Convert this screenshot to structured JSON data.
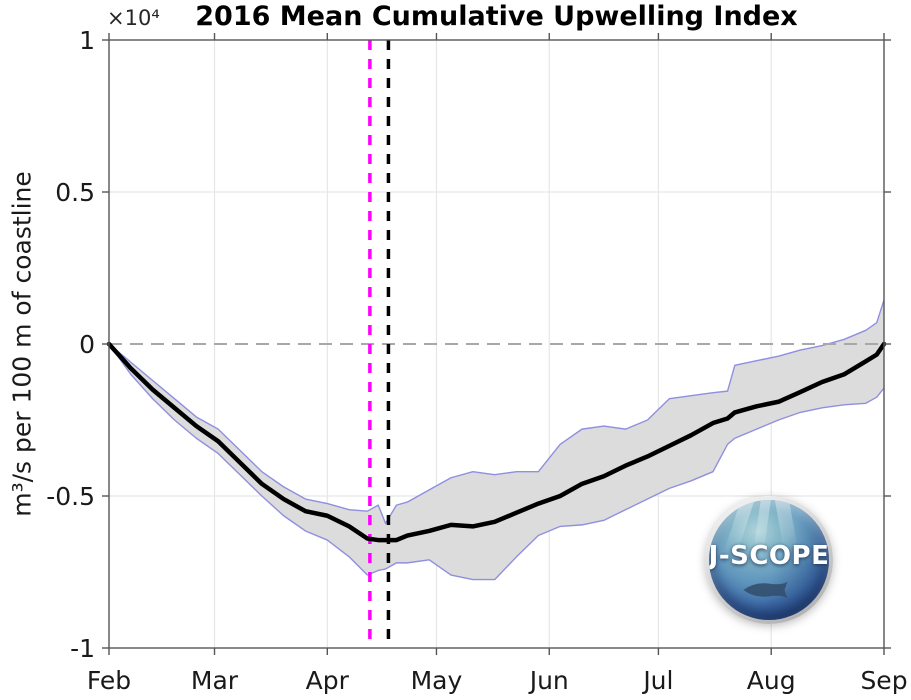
{
  "page": {
    "background": "#ffffff"
  },
  "chart_data": {
    "type": "line",
    "title": "2016 Mean Cumulative Upwelling Index",
    "y_offset_text": "×10⁴",
    "ylabel": "m³/s per 100 m of coastline",
    "xlabel": "",
    "y_unit_multiplier": 10000,
    "xlim_days": [
      0,
      213
    ],
    "ylim": [
      -1,
      1
    ],
    "x_tick_labels": [
      "Feb",
      "Mar",
      "Apr",
      "May",
      "Jun",
      "Jul",
      "Aug",
      "Sep"
    ],
    "x_tick_days": [
      0,
      29,
      60,
      90,
      121,
      151,
      182,
      213
    ],
    "x_gridline_days": [
      29,
      60,
      90,
      121,
      151,
      182
    ],
    "y_ticks": [
      1,
      0.5,
      0,
      -0.5,
      -1
    ],
    "y_tick_labels": [
      "1",
      "0.5",
      "0",
      "-0.5",
      "-1"
    ],
    "y_gridlines": [
      0.5,
      -0.5
    ],
    "grid": true,
    "legend": false,
    "zero_line": {
      "value": 0,
      "style": "dashed"
    },
    "vlines": [
      {
        "id": "magenta-dashed-line",
        "day": 71.7,
        "style": "dashed",
        "color": "#ff00ff"
      },
      {
        "id": "black-dashed-line",
        "day": 76.8,
        "style": "dashed",
        "color": "#000000"
      }
    ],
    "series_x_days": [
      0,
      6,
      12,
      18,
      24,
      30,
      36,
      42,
      48,
      54,
      60,
      66,
      71,
      74,
      76,
      79,
      82,
      88,
      94,
      100,
      106,
      112,
      118,
      124,
      130,
      136,
      142,
      148,
      154,
      160,
      166,
      170,
      172,
      178,
      184,
      190,
      196,
      202,
      208,
      211,
      213
    ],
    "series": {
      "mean": {
        "name": "mean cumulative upwelling index",
        "color": "#000000",
        "values": [
          0,
          -0.08,
          -0.15,
          -0.21,
          -0.27,
          -0.32,
          -0.39,
          -0.46,
          -0.51,
          -0.55,
          -0.565,
          -0.6,
          -0.64,
          -0.645,
          -0.645,
          -0.645,
          -0.63,
          -0.615,
          -0.595,
          -0.6,
          -0.585,
          -0.555,
          -0.525,
          -0.5,
          -0.46,
          -0.435,
          -0.4,
          -0.37,
          -0.335,
          -0.3,
          -0.26,
          -0.245,
          -0.225,
          -0.205,
          -0.19,
          -0.158,
          -0.125,
          -0.1,
          -0.057,
          -0.035,
          0
        ]
      },
      "upper": {
        "name": "uncertainty band upper bound",
        "color": "#8f8fe0",
        "values": [
          0,
          -0.06,
          -0.12,
          -0.18,
          -0.24,
          -0.28,
          -0.35,
          -0.42,
          -0.47,
          -0.51,
          -0.525,
          -0.545,
          -0.55,
          -0.53,
          -0.59,
          -0.53,
          -0.52,
          -0.48,
          -0.44,
          -0.42,
          -0.43,
          -0.42,
          -0.42,
          -0.33,
          -0.28,
          -0.27,
          -0.28,
          -0.25,
          -0.18,
          -0.17,
          -0.16,
          -0.155,
          -0.07,
          -0.055,
          -0.04,
          -0.02,
          -0.005,
          0.015,
          0.045,
          0.07,
          0.145
        ]
      },
      "lower": {
        "name": "uncertainty band lower bound",
        "color": "#8f8fe0",
        "values": [
          0,
          -0.1,
          -0.18,
          -0.25,
          -0.31,
          -0.36,
          -0.43,
          -0.5,
          -0.565,
          -0.615,
          -0.645,
          -0.7,
          -0.76,
          -0.745,
          -0.74,
          -0.72,
          -0.72,
          -0.71,
          -0.76,
          -0.775,
          -0.775,
          -0.7,
          -0.63,
          -0.6,
          -0.595,
          -0.58,
          -0.545,
          -0.51,
          -0.475,
          -0.45,
          -0.42,
          -0.33,
          -0.31,
          -0.28,
          -0.25,
          -0.225,
          -0.21,
          -0.2,
          -0.195,
          -0.175,
          -0.145
        ]
      }
    },
    "band_fill_color": "#dcdcdc"
  },
  "styles": {
    "grid_color": "#e6e6e6",
    "spine_color": "#555555",
    "tick_color": "#555555",
    "text_color": "#1a1a1a",
    "zero_line_color": "#a8a8a8",
    "band_fill": "#dcdcdc",
    "band_edge": "#8f8fe0",
    "mean_line": "#000000"
  },
  "logo": {
    "text": "J-SCOPE"
  }
}
